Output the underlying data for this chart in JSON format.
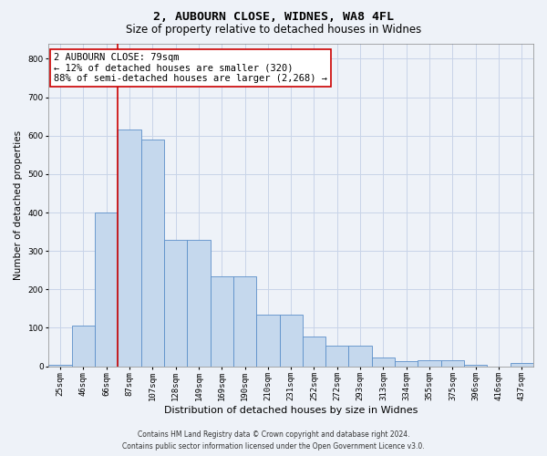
{
  "title1": "2, AUBOURN CLOSE, WIDNES, WA8 4FL",
  "title2": "Size of property relative to detached houses in Widnes",
  "xlabel": "Distribution of detached houses by size in Widnes",
  "ylabel": "Number of detached properties",
  "categories": [
    "25sqm",
    "46sqm",
    "66sqm",
    "87sqm",
    "107sqm",
    "128sqm",
    "149sqm",
    "169sqm",
    "190sqm",
    "210sqm",
    "231sqm",
    "252sqm",
    "272sqm",
    "293sqm",
    "313sqm",
    "334sqm",
    "355sqm",
    "375sqm",
    "396sqm",
    "416sqm",
    "437sqm"
  ],
  "values": [
    5,
    105,
    400,
    615,
    590,
    328,
    328,
    235,
    235,
    135,
    135,
    78,
    53,
    53,
    22,
    14,
    15,
    15,
    4,
    0,
    8
  ],
  "bar_color": "#c5d8ed",
  "bar_edge_color": "#5b8fc9",
  "grid_color": "#c8d4e8",
  "vline_color": "#cc0000",
  "vline_x_index": 2.5,
  "annotation_text": "2 AUBOURN CLOSE: 79sqm\n← 12% of detached houses are smaller (320)\n88% of semi-detached houses are larger (2,268) →",
  "annotation_box_color": "white",
  "annotation_box_edge_color": "#cc0000",
  "footer1": "Contains HM Land Registry data © Crown copyright and database right 2024.",
  "footer2": "Contains public sector information licensed under the Open Government Licence v3.0.",
  "ylim": [
    0,
    840
  ],
  "yticks": [
    0,
    100,
    200,
    300,
    400,
    500,
    600,
    700,
    800
  ],
  "background_color": "#eef2f8",
  "plot_bg_color": "#eef2f8",
  "title1_fontsize": 9.5,
  "title2_fontsize": 8.5,
  "xlabel_fontsize": 8,
  "ylabel_fontsize": 7.5,
  "tick_fontsize": 6.5,
  "annot_fontsize": 7.5,
  "footer_fontsize": 5.5
}
